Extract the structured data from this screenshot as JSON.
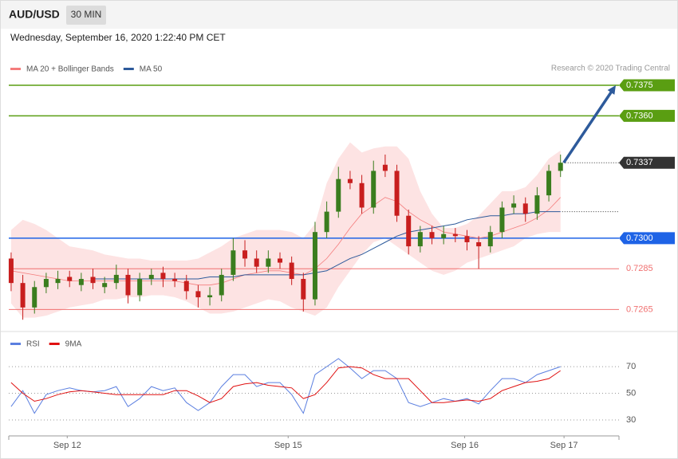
{
  "header": {
    "symbol": "AUD/USD",
    "timeframe": "30 MIN",
    "datetime": "Wednesday, September 16, 2020 1:22:40 PM CET"
  },
  "chart_data": [
    {
      "type": "candlestick",
      "credit": "Research © 2020 Trading Central",
      "up_color": "#3a7d1e",
      "down_color": "#c81e1e",
      "open": [
        0.729,
        0.7278,
        0.7266,
        0.7276,
        0.7278,
        0.7281,
        0.7277,
        0.7281,
        0.7276,
        0.7278,
        0.7282,
        0.7272,
        0.728,
        0.7283,
        0.728,
        0.7279,
        0.7274,
        0.7271,
        0.7272,
        0.7282,
        0.7294,
        0.729,
        0.7286,
        0.729,
        0.7288,
        0.728,
        0.727,
        0.7303,
        0.7313,
        0.7329,
        0.7327,
        0.7315,
        0.7336,
        0.7333,
        0.7311,
        0.7296,
        0.7303,
        0.73,
        0.7302,
        0.7301,
        0.7298,
        0.7296,
        0.7303,
        0.7315,
        0.7317,
        0.7312,
        0.7321,
        0.7333
      ],
      "high": [
        0.7293,
        0.7282,
        0.7279,
        0.7283,
        0.7284,
        0.7284,
        0.7283,
        0.7285,
        0.7281,
        0.7287,
        0.7285,
        0.7283,
        0.7285,
        0.7286,
        0.7283,
        0.7282,
        0.7277,
        0.7276,
        0.7285,
        0.73,
        0.7299,
        0.7294,
        0.7294,
        0.7293,
        0.7291,
        0.7283,
        0.7308,
        0.7318,
        0.7335,
        0.7333,
        0.7331,
        0.7338,
        0.7341,
        0.7336,
        0.7314,
        0.7306,
        0.7306,
        0.7306,
        0.7305,
        0.7304,
        0.7301,
        0.7306,
        0.7318,
        0.7321,
        0.732,
        0.7325,
        0.7336,
        0.7341
      ],
      "low": [
        0.7274,
        0.726,
        0.7263,
        0.7273,
        0.7275,
        0.7276,
        0.7274,
        0.7275,
        0.7273,
        0.7275,
        0.7268,
        0.7269,
        0.7277,
        0.7276,
        0.7276,
        0.727,
        0.7266,
        0.7267,
        0.7269,
        0.7279,
        0.7286,
        0.7283,
        0.7283,
        0.7285,
        0.7277,
        0.7264,
        0.7267,
        0.73,
        0.731,
        0.7324,
        0.7312,
        0.7312,
        0.733,
        0.7308,
        0.7292,
        0.7293,
        0.7297,
        0.7297,
        0.7298,
        0.7294,
        0.7285,
        0.7293,
        0.73,
        0.7312,
        0.7308,
        0.7309,
        0.7318,
        0.733
      ],
      "close": [
        0.7278,
        0.7266,
        0.7276,
        0.728,
        0.728,
        0.7279,
        0.728,
        0.7278,
        0.7278,
        0.7282,
        0.7272,
        0.728,
        0.7282,
        0.728,
        0.7279,
        0.7274,
        0.7271,
        0.7272,
        0.7282,
        0.7294,
        0.729,
        0.7286,
        0.729,
        0.7288,
        0.728,
        0.727,
        0.7303,
        0.7313,
        0.7329,
        0.7327,
        0.7315,
        0.7333,
        0.7333,
        0.7311,
        0.7296,
        0.7303,
        0.73,
        0.7302,
        0.7301,
        0.7298,
        0.7296,
        0.7303,
        0.7315,
        0.7317,
        0.7312,
        0.7321,
        0.7333,
        0.7337
      ],
      "series": [
        {
          "name": "MA 20 + Bollinger Bands",
          "color": "#f47c7c",
          "values": [
            0.7284,
            0.7283,
            0.7282,
            0.7281,
            0.728,
            0.7279,
            0.7279,
            0.7279,
            0.7279,
            0.7279,
            0.7279,
            0.7279,
            0.7279,
            0.7279,
            0.7279,
            0.7278,
            0.7277,
            0.7277,
            0.7278,
            0.728,
            0.7282,
            0.7283,
            0.7284,
            0.7284,
            0.7283,
            0.7282,
            0.7285,
            0.729,
            0.7297,
            0.7305,
            0.7312,
            0.7316,
            0.732,
            0.7318,
            0.7313,
            0.7309,
            0.7306,
            0.7303,
            0.7302,
            0.7301,
            0.73,
            0.7301,
            0.7303,
            0.7305,
            0.7307,
            0.731,
            0.7314,
            0.732
          ],
          "upper": [
            0.7304,
            0.7309,
            0.7307,
            0.7304,
            0.73,
            0.7296,
            0.7295,
            0.7294,
            0.7292,
            0.7291,
            0.729,
            0.729,
            0.7289,
            0.7289,
            0.7289,
            0.7289,
            0.729,
            0.7293,
            0.7296,
            0.73,
            0.7302,
            0.7304,
            0.7304,
            0.7304,
            0.7303,
            0.73,
            0.7307,
            0.7327,
            0.7339,
            0.7347,
            0.7342,
            0.7344,
            0.7345,
            0.7345,
            0.7339,
            0.7323,
            0.7312,
            0.7305,
            0.7305,
            0.7307,
            0.7311,
            0.7317,
            0.7323,
            0.7323,
            0.7325,
            0.7331,
            0.7339,
            0.7343
          ],
          "lower": [
            0.7268,
            0.7261,
            0.7261,
            0.7262,
            0.7264,
            0.7266,
            0.7267,
            0.7268,
            0.727,
            0.727,
            0.7271,
            0.7271,
            0.7272,
            0.7272,
            0.7271,
            0.7269,
            0.7266,
            0.7263,
            0.7263,
            0.7264,
            0.7266,
            0.7268,
            0.727,
            0.7269,
            0.7266,
            0.7264,
            0.7262,
            0.7266,
            0.7276,
            0.7284,
            0.7292,
            0.7298,
            0.73,
            0.7296,
            0.7292,
            0.7288,
            0.7284,
            0.7282,
            0.7284,
            0.7288,
            0.729,
            0.7292,
            0.7294,
            0.7296,
            0.73,
            0.7302,
            0.7303,
            0.7303
          ]
        },
        {
          "name": "MA 50",
          "color": "#2d5a9b",
          "values": [
            null,
            null,
            null,
            null,
            null,
            null,
            null,
            0.728,
            0.728,
            0.728,
            0.728,
            0.728,
            0.728,
            0.728,
            0.728,
            0.728,
            0.728,
            0.7281,
            0.7281,
            0.7281,
            0.7282,
            0.7282,
            0.7282,
            0.7282,
            0.7282,
            0.7282,
            0.7283,
            0.7284,
            0.7287,
            0.729,
            0.7292,
            0.7295,
            0.7298,
            0.7301,
            0.7303,
            0.7304,
            0.7305,
            0.7306,
            0.7307,
            0.7309,
            0.731,
            0.7311,
            0.7311,
            0.7312,
            0.7312,
            0.7313,
            0.7313,
            0.7313
          ]
        }
      ],
      "levels": {
        "values": [
          0.7375,
          0.736,
          0.7337,
          0.73,
          0.7285,
          0.7265
        ],
        "value_labels": [
          "0.7375",
          "0.7360",
          "0.7337",
          "0.7300",
          "0.7285",
          "0.7265"
        ],
        "colors": [
          "#5a9e12",
          "#5a9e12",
          "#333333",
          "#1e63e6",
          "#f07070",
          "#f07070"
        ],
        "styles": [
          "solid",
          "solid",
          "dotted",
          "solid",
          "solid",
          "solid"
        ],
        "label_boxes": [
          true,
          true,
          true,
          true,
          false,
          false
        ]
      },
      "ylim": [
        0.7255,
        0.74
      ]
    },
    {
      "type": "line",
      "series": [
        {
          "name": "RSI",
          "color": "#5b7fe0",
          "values": [
            40,
            52,
            35,
            49,
            52,
            54,
            52,
            51,
            52,
            55,
            40,
            46,
            55,
            52,
            54,
            43,
            37,
            43,
            55,
            64,
            64,
            55,
            58,
            58,
            49,
            35,
            64,
            70,
            76,
            69,
            61,
            67,
            67,
            61,
            43,
            40,
            43,
            46,
            44,
            46,
            42,
            52,
            61,
            61,
            58,
            64,
            67,
            70
          ]
        },
        {
          "name": "9MA",
          "color": "#e01010",
          "values": [
            58,
            50,
            44,
            46,
            49,
            51,
            52,
            51,
            50,
            49,
            49,
            49,
            49,
            49,
            52,
            52,
            48,
            43,
            46,
            55,
            57,
            58,
            56,
            55,
            54,
            46,
            49,
            58,
            69,
            70,
            69,
            64,
            61,
            61,
            61,
            52,
            43,
            43,
            44,
            45,
            44,
            46,
            52,
            55,
            58,
            59,
            61,
            67
          ]
        }
      ],
      "ylim": [
        18,
        82
      ],
      "yticks": [
        30,
        50,
        70
      ],
      "xlim": [
        -0.2,
        52
      ],
      "xticks": [
        {
          "value": 4.8,
          "label": "Sep 12"
        },
        {
          "value": 23.7,
          "label": "Sep 15"
        },
        {
          "value": 38.8,
          "label": "Sep 16"
        },
        {
          "value": 47.3,
          "label": "Sep 17"
        }
      ]
    }
  ]
}
